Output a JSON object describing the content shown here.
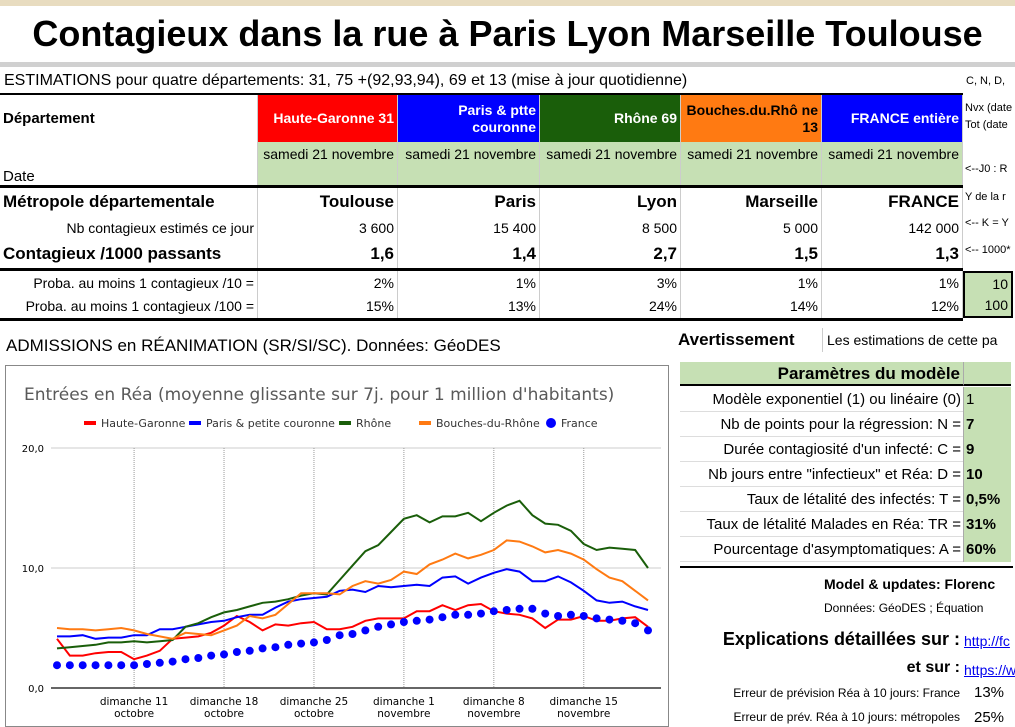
{
  "title": "Contagieux dans la rue à Paris Lyon Marseille Toulouse",
  "estimations": "ESTIMATIONS pour quatre départements: 31, 75 +(92,93,94), 69 et 13 (mise à jour quotidienne)",
  "side_notes": {
    "cnd": "C, N, D,",
    "nvx": "Nvx (date",
    "tot": "Tot (date",
    "j0": "<--J0 : R",
    "y": "Y de la r",
    "k": "<-- K = Y",
    "k1000": "<-- 1000*"
  },
  "colors": {
    "haute_garonne": "#ff0000",
    "paris": "#0000ff",
    "rhone": "#1a5e0a",
    "bdr": "#ff7a12",
    "france": "#0000ff",
    "param_green": "#c6e0b4"
  },
  "table": {
    "dept_label": "Département",
    "date_label": "Date",
    "departments": [
      "Haute-Garonne 31",
      "Paris & ptte couronne",
      "Rhône 69",
      "Bouches.du.Rhô ne 13",
      "FRANCE entière"
    ],
    "dates": [
      "samedi 21 novembre",
      "samedi 21 novembre",
      "samedi 21 novembre",
      "samedi 21 novembre",
      "samedi 21 novembre"
    ],
    "metro_label": "Métropole départementale",
    "metros": [
      "Toulouse",
      "Paris",
      "Lyon",
      "Marseille",
      "FRANCE"
    ],
    "nb_label": "Nb contagieux estimés ce jour",
    "nb": [
      "3 600",
      "15 400",
      "8 500",
      "5 000",
      "142 000"
    ],
    "per1000_label": "Contagieux /1000 passants",
    "per1000": [
      "1,6",
      "1,4",
      "2,7",
      "1,5",
      "1,3"
    ],
    "p10_label": "Proba. au moins 1 contagieux /10 =",
    "p10": [
      "2%",
      "1%",
      "3%",
      "1%",
      "1%"
    ],
    "p10_n": "10",
    "p100_label": "Proba. au moins 1 contagieux /100 =",
    "p100": [
      "15%",
      "13%",
      "24%",
      "14%",
      "12%"
    ],
    "p100_n": "100"
  },
  "admissions_title": "ADMISSIONS en RÉANIMATION (SR/SI/SC). Données: GéoDES",
  "avertissement": {
    "label": "Avertissement",
    "text": "Les estimations de cette pa"
  },
  "params": {
    "title": "Paramètres du modèle",
    "rows": [
      {
        "label": "Modèle exponentiel (1) ou linéaire (0)",
        "value": "1"
      },
      {
        "label": "Nb de points pour la régression: N =",
        "value": "7"
      },
      {
        "label": "Durée contagiosité d'un infecté: C =",
        "value": "9"
      },
      {
        "label": "Nb jours entre \"infectieux\" et Réa: D =",
        "value": "10"
      },
      {
        "label": "Taux de létalité des infectés: T =",
        "value": "0,5%"
      },
      {
        "label": "Taux de létalité Malades en Réa: TR =",
        "value": "31%"
      },
      {
        "label": "Pourcentage d'asymptomatiques: A =",
        "value": "60%"
      }
    ]
  },
  "model_updates": "Model & updates: Florenc",
  "donnees": "Données: GéoDES ; Équation",
  "explications": {
    "label": "Explications détaillées sur :",
    "link": "http://fc",
    "et_sur": "et sur :",
    "link2": "https://w"
  },
  "errors": [
    {
      "label": "Erreur de prévision Réa à 10 jours: France",
      "value": "13%"
    },
    {
      "label": "Erreur de prév. Réa à 10 jours: métropoles",
      "value": "25%"
    }
  ],
  "chart_data": {
    "type": "line",
    "title": "Entrées en Réa  (moyenne glissante sur 7j. pour 1 million d'habitants)",
    "ylim": [
      0,
      20
    ],
    "yticks": [
      "0,0",
      "10,0",
      "20,0"
    ],
    "grid": true,
    "legend": "top",
    "x": [
      "5 oct",
      "6 oct",
      "7 oct",
      "8 oct",
      "9 oct",
      "10 oct",
      "11 oct",
      "12 oct",
      "13 oct",
      "14 oct",
      "15 oct",
      "16 oct",
      "17 oct",
      "18 oct",
      "19 oct",
      "20 oct",
      "21 oct",
      "22 oct",
      "23 oct",
      "24 oct",
      "25 oct",
      "26 oct",
      "27 oct",
      "28 oct",
      "29 oct",
      "30 oct",
      "31 oct",
      "1 nov",
      "2 nov",
      "3 nov",
      "4 nov",
      "5 nov",
      "6 nov",
      "7 nov",
      "8 nov",
      "9 nov",
      "10 nov",
      "11 nov",
      "12 nov",
      "13 nov",
      "14 nov",
      "15 nov",
      "16 nov",
      "17 nov",
      "18 nov",
      "19 nov",
      "20 nov"
    ],
    "xticks": [
      {
        "at": "11 oct",
        "label": [
          "dimanche 11",
          "octobre"
        ]
      },
      {
        "at": "18 oct",
        "label": [
          "dimanche 18",
          "octobre"
        ]
      },
      {
        "at": "25 oct",
        "label": [
          "dimanche 25",
          "octobre"
        ]
      },
      {
        "at": "1 nov",
        "label": [
          "dimanche 1",
          "novembre"
        ]
      },
      {
        "at": "8 nov",
        "label": [
          "dimanche 8",
          "novembre"
        ]
      },
      {
        "at": "15 nov",
        "label": [
          "dimanche 15",
          "novembre"
        ]
      }
    ],
    "series": [
      {
        "name": "Haute-Garonne",
        "color": "#ff0000",
        "style": "line",
        "values": [
          4.1,
          2.7,
          2.7,
          2.9,
          3.0,
          3.0,
          2.4,
          2.7,
          3.1,
          4.1,
          4.2,
          4.3,
          4.6,
          5.2,
          6.0,
          5.5,
          4.8,
          5.3,
          5.2,
          5.4,
          5.5,
          4.9,
          4.9,
          5.1,
          5.6,
          5.8,
          5.8,
          5.8,
          6.4,
          6.4,
          6.9,
          6.5,
          6.9,
          7.0,
          6.4,
          6.2,
          6.1,
          5.8,
          5.0,
          5.7,
          5.7,
          6.0,
          5.6,
          5.6,
          5.8,
          5.9,
          5.1
        ]
      },
      {
        "name": "Paris & petite couronne",
        "color": "#0000ff",
        "style": "line",
        "values": [
          4.3,
          4.3,
          4.4,
          4.1,
          4.2,
          4.2,
          4.4,
          4.4,
          4.9,
          4.9,
          5.1,
          5.3,
          5.5,
          5.6,
          5.9,
          6.1,
          6.1,
          6.7,
          7.2,
          7.4,
          7.5,
          7.6,
          8.1,
          8.2,
          8.0,
          8.5,
          8.4,
          8.5,
          8.6,
          8.5,
          9.2,
          9.3,
          8.7,
          9.2,
          9.6,
          9.9,
          9.7,
          8.9,
          8.9,
          9.3,
          8.8,
          8.1,
          7.3,
          7.1,
          7.2,
          6.8,
          6.5
        ]
      },
      {
        "name": "Rhône",
        "color": "#1a5e0a",
        "style": "line",
        "values": [
          3.3,
          3.4,
          3.5,
          3.6,
          3.8,
          3.8,
          3.9,
          3.8,
          3.9,
          4.0,
          5.1,
          5.4,
          5.9,
          6.3,
          6.5,
          6.8,
          7.1,
          7.2,
          7.4,
          7.7,
          7.9,
          7.8,
          9.0,
          10.2,
          11.4,
          11.9,
          13.0,
          14.1,
          14.4,
          13.8,
          14.3,
          14.3,
          14.6,
          13.9,
          14.6,
          15.2,
          15.6,
          14.4,
          13.7,
          13.6,
          13.1,
          12.0,
          11.5,
          11.7,
          11.6,
          11.5,
          10.0
        ]
      },
      {
        "name": "Bouches-du-Rhône",
        "color": "#ff7a12",
        "style": "line",
        "values": [
          5.0,
          4.9,
          4.9,
          4.8,
          4.9,
          5.0,
          4.8,
          4.5,
          4.3,
          4.1,
          4.6,
          4.5,
          4.4,
          4.8,
          5.2,
          6.0,
          5.8,
          6.1,
          7.0,
          7.9,
          7.9,
          7.9,
          7.8,
          8.5,
          8.9,
          8.7,
          9.0,
          9.7,
          9.5,
          10.3,
          10.7,
          11.2,
          10.8,
          11.1,
          11.5,
          12.3,
          12.2,
          11.8,
          11.3,
          11.5,
          11.2,
          10.7,
          9.9,
          9.2,
          8.9,
          8.1,
          7.3
        ]
      },
      {
        "name": "France",
        "color": "#0000ff",
        "style": "dots",
        "values": [
          1.9,
          1.9,
          1.9,
          1.9,
          1.9,
          1.9,
          1.9,
          2.0,
          2.1,
          2.2,
          2.4,
          2.5,
          2.7,
          2.8,
          3.0,
          3.1,
          3.3,
          3.4,
          3.6,
          3.7,
          3.8,
          4.0,
          4.4,
          4.5,
          4.8,
          5.1,
          5.3,
          5.5,
          5.6,
          5.7,
          5.9,
          6.1,
          6.1,
          6.2,
          6.4,
          6.5,
          6.6,
          6.6,
          6.2,
          6.0,
          6.1,
          6.0,
          5.8,
          5.7,
          5.6,
          5.4,
          4.8
        ]
      }
    ]
  }
}
